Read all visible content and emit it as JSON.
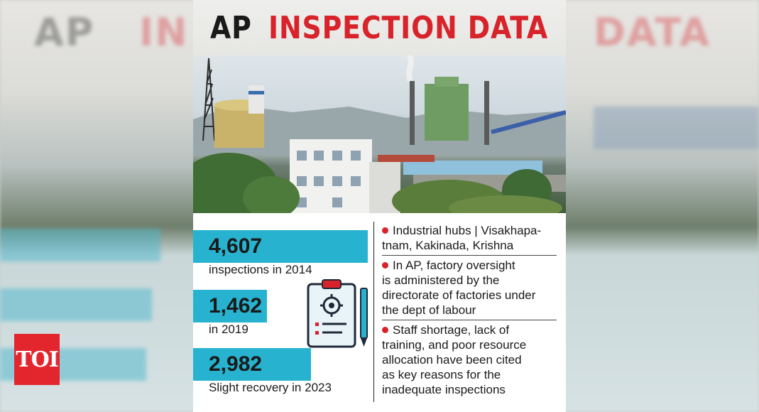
{
  "header": {
    "title_black": "AP",
    "title_red": "INSPECTION DATA"
  },
  "logo": {
    "text": "TOI"
  },
  "stats": [
    {
      "value": "4,607",
      "caption": "inspections in 2014"
    },
    {
      "value": "1,462",
      "caption": "in 2019"
    },
    {
      "value": "2,982",
      "caption": "Slight recovery in 2023"
    }
  ],
  "points": [
    {
      "lines": [
        "Industrial hubs | Visakhapa-",
        "tnam, Kakinada, Krishna"
      ]
    },
    {
      "lines": [
        "In AP, factory oversight",
        "is administered by the",
        "directorate of factories under",
        "the dept of labour"
      ]
    },
    {
      "lines": [
        "Staff shortage, lack of",
        "training, and poor resource",
        "allocation have been cited",
        "as key reasons for the",
        "inadequate inspections"
      ]
    }
  ],
  "icons": {
    "clipboard": "clipboard-gear-icon",
    "pen": "pen-icon"
  },
  "colors": {
    "accent_red": "#d8232a",
    "stat_bar": "#27b3cf"
  }
}
